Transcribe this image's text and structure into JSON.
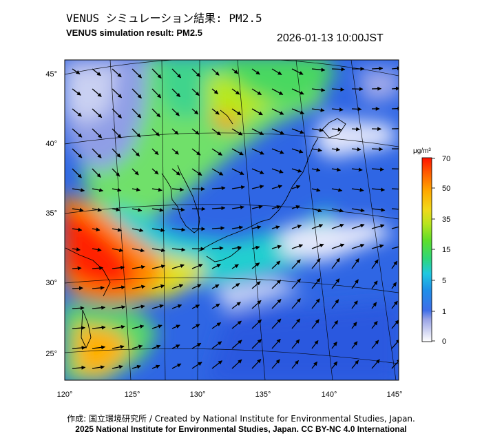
{
  "title_ja": "VENUS シミュレーション結果: PM2.5",
  "title_en": "VENUS simulation result: PM2.5",
  "datetime": "2026-01-13 10:00JST",
  "lon_labels": [
    "120°",
    "125°",
    "130°",
    "135°",
    "140°",
    "145°"
  ],
  "lat_labels": [
    "45°",
    "40°",
    "35°",
    "30°",
    "25°"
  ],
  "colorbar": {
    "unit": "μg/m³",
    "ticks": [
      "70",
      "50",
      "35",
      "15",
      "5",
      "1",
      "0"
    ],
    "colors": [
      "#ffffff",
      "#c9cfee",
      "#7f8fe0",
      "#2f5fe6",
      "#1f9fe6",
      "#22d0c8",
      "#2fd66a",
      "#80e22a",
      "#d6e81c",
      "#ffb800",
      "#ff6a00",
      "#ff1a00"
    ]
  },
  "credit_1": "作成: 国立環境研究所 / Created by National Institute for Environmental Studies, Japan.",
  "credit_2": "2025 National Institute for Environmental Studies, Japan. CC BY-NC 4.0 International"
}
